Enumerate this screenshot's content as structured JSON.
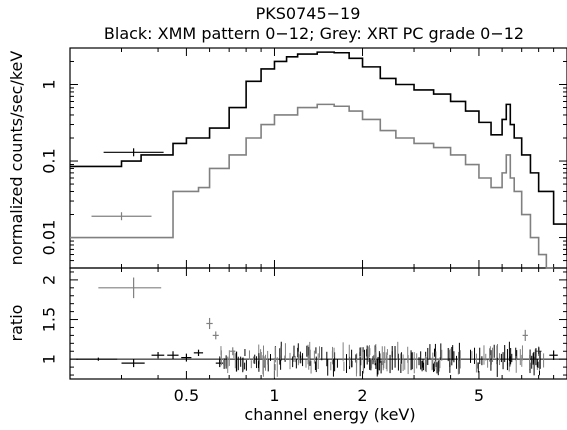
{
  "chart_data": [
    {
      "type": "line",
      "panel": "spectrum",
      "title": "PKS0745−19",
      "subtitle": "Black: XMM pattern 0−12; Grey: XRT PC grade 0−12",
      "xlabel": "channel energy (keV)",
      "ylabel": "normalized counts/sec/keV",
      "xscale": "log",
      "yscale": "log",
      "xlim": [
        0.2,
        10
      ],
      "ylim": [
        0.004,
        3
      ],
      "x_tick_labels": [
        "0.5",
        "1",
        "2",
        "5"
      ],
      "x_tick_values": [
        0.5,
        1,
        2,
        5
      ],
      "y_tick_labels": [
        "0.01",
        "0.1",
        "1"
      ],
      "y_tick_values": [
        0.01,
        0.1,
        1
      ],
      "series": [
        {
          "color": "#000000",
          "x": [
            0.2,
            0.3,
            0.35,
            0.45,
            0.5,
            0.6,
            0.7,
            0.8,
            0.9,
            1.0,
            1.1,
            1.2,
            1.4,
            1.6,
            1.8,
            2.0,
            2.3,
            2.6,
            3.0,
            3.5,
            4.0,
            4.5,
            5.0,
            5.5,
            6.0,
            6.2,
            6.4,
            6.6,
            7.0,
            7.5,
            8.0,
            9.0,
            10.0
          ],
          "y": [
            0.085,
            0.1,
            0.12,
            0.17,
            0.2,
            0.27,
            0.5,
            1.1,
            1.6,
            2.0,
            2.3,
            2.5,
            2.65,
            2.6,
            2.2,
            1.7,
            1.2,
            1.0,
            0.85,
            0.75,
            0.6,
            0.45,
            0.32,
            0.22,
            0.35,
            0.55,
            0.3,
            0.2,
            0.12,
            0.07,
            0.04,
            0.015,
            0.006
          ]
        },
        {
          "color": "#808080",
          "x": [
            0.2,
            0.4,
            0.45,
            0.55,
            0.6,
            0.7,
            0.8,
            0.9,
            1.0,
            1.2,
            1.4,
            1.6,
            1.8,
            2.0,
            2.3,
            2.6,
            3.0,
            3.5,
            4.0,
            4.5,
            5.0,
            5.5,
            6.0,
            6.2,
            6.4,
            6.6,
            7.0,
            7.5,
            8.0,
            8.5,
            9.0
          ],
          "y": [
            0.01,
            0.01,
            0.04,
            0.045,
            0.08,
            0.12,
            0.2,
            0.3,
            0.4,
            0.5,
            0.55,
            0.52,
            0.45,
            0.35,
            0.25,
            0.2,
            0.17,
            0.15,
            0.12,
            0.09,
            0.06,
            0.045,
            0.07,
            0.12,
            0.06,
            0.04,
            0.02,
            0.01,
            0.006,
            0.004,
            0.004
          ]
        }
      ],
      "error_points": [
        {
          "color": "#808080",
          "x": 0.3,
          "y": 0.019
        },
        {
          "color": "#000000",
          "x": 0.33,
          "y": 0.13
        }
      ]
    },
    {
      "type": "scatter",
      "panel": "ratio",
      "xlabel": "channel energy (keV)",
      "ylabel": "ratio",
      "xscale": "log",
      "xlim": [
        0.2,
        10
      ],
      "ylim": [
        0.75,
        2.15
      ],
      "y_tick_labels": [
        "1",
        "1.5",
        "2"
      ],
      "y_tick_values": [
        1,
        1.5,
        2
      ],
      "series": [
        {
          "color": "#808080",
          "points": [
            {
              "x": 0.33,
              "y": 1.9,
              "xerr": 0.08,
              "yerr": 0.13
            },
            {
              "x": 0.6,
              "y": 1.45,
              "xerr": 0.015,
              "yerr": 0.07
            },
            {
              "x": 0.63,
              "y": 1.3,
              "xerr": 0.015,
              "yerr": 0.05
            },
            {
              "x": 0.72,
              "y": 1.1,
              "xerr": 0.015,
              "yerr": 0.05
            },
            {
              "x": 7.2,
              "y": 1.3,
              "xerr": 0.15,
              "yerr": 0.07
            },
            {
              "x": 8.0,
              "y": 1.1,
              "xerr": 0.2,
              "yerr": 0.06
            }
          ]
        },
        {
          "color": "#000000",
          "points": [
            {
              "x": 0.25,
              "y": 1.0,
              "xerr": 0.04,
              "yerr": 0.02
            },
            {
              "x": 0.33,
              "y": 0.95,
              "xerr": 0.03,
              "yerr": 0.05
            },
            {
              "x": 0.4,
              "y": 1.05,
              "xerr": 0.02,
              "yerr": 0.04
            },
            {
              "x": 0.45,
              "y": 1.05,
              "xerr": 0.02,
              "yerr": 0.05
            },
            {
              "x": 0.5,
              "y": 1.02,
              "xerr": 0.02,
              "yerr": 0.05
            },
            {
              "x": 0.55,
              "y": 1.08,
              "xerr": 0.02,
              "yerr": 0.04
            },
            {
              "x": 0.65,
              "y": 0.95,
              "xerr": 0.02,
              "yerr": 0.05
            },
            {
              "x": 9.0,
              "y": 1.05,
              "xerr": 0.3,
              "yerr": 0.06
            }
          ]
        }
      ]
    }
  ]
}
